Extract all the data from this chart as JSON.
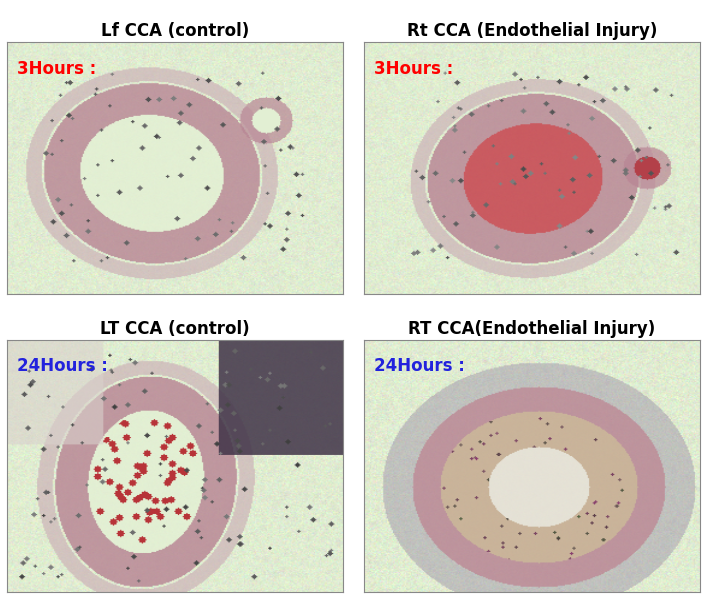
{
  "titles": [
    "Lf CCA (control)",
    "Rt CCA (Endothelial Injury)",
    "LT CCA (control)",
    "RT CCA(Endothelial Injury)"
  ],
  "labels": [
    "3Hours :",
    "3Hours :",
    "24Hours :",
    "24Hours :"
  ],
  "label_colors": [
    "#ff0000",
    "#ff0000",
    "#2222dd",
    "#2222dd"
  ],
  "title_fontsize": 12,
  "label_fontsize": 12,
  "bg_color": "#ffffff",
  "panel_bg_rgb": [
    0.88,
    0.93,
    0.82
  ],
  "figure_size": [
    7.07,
    5.98
  ],
  "dpi": 100,
  "title_font_weight": "bold"
}
